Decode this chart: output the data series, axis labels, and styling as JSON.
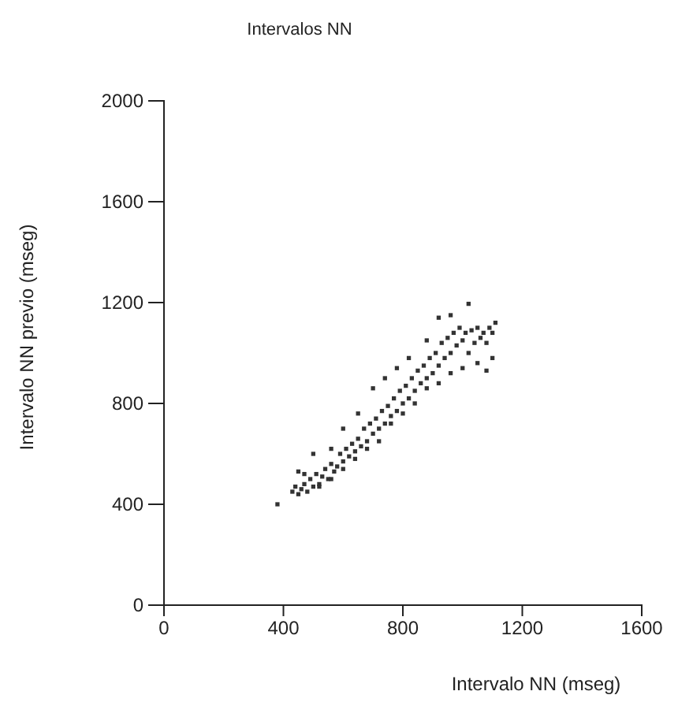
{
  "chart_data": {
    "type": "scatter",
    "title": "Intervalos NN",
    "xlabel": "Intervalo NN (mseg)",
    "ylabel": "Intervalo NN previo (mseg)",
    "xlim": [
      0,
      1600
    ],
    "ylim": [
      0,
      2000
    ],
    "xticks": [
      0,
      400,
      800,
      1200,
      1600
    ],
    "yticks": [
      0,
      400,
      800,
      1200,
      1600,
      2000
    ],
    "grid": false,
    "marker": "square",
    "series": [
      {
        "color": "#333333",
        "x": [
          380,
          430,
          440,
          450,
          460,
          470,
          480,
          490,
          500,
          470,
          450,
          510,
          520,
          530,
          540,
          550,
          560,
          570,
          580,
          590,
          600,
          610,
          620,
          630,
          640,
          650,
          660,
          670,
          680,
          690,
          700,
          710,
          720,
          730,
          740,
          750,
          760,
          770,
          780,
          790,
          800,
          810,
          820,
          830,
          840,
          850,
          860,
          870,
          880,
          890,
          900,
          910,
          920,
          930,
          940,
          950,
          960,
          970,
          980,
          990,
          1000,
          1010,
          1020,
          1030,
          1040,
          1050,
          1060,
          1070,
          1080,
          1090,
          1100,
          1110,
          1100,
          1080,
          1050,
          1000,
          960,
          920,
          880,
          840,
          800,
          760,
          720,
          680,
          640,
          600,
          560,
          520,
          500,
          560,
          600,
          650,
          700,
          740,
          780,
          820,
          880,
          920,
          960,
          1020
        ],
        "values": [
          400,
          450,
          470,
          440,
          460,
          480,
          450,
          500,
          470,
          520,
          530,
          520,
          480,
          510,
          540,
          500,
          560,
          530,
          550,
          600,
          570,
          620,
          590,
          640,
          610,
          660,
          630,
          700,
          650,
          720,
          680,
          740,
          700,
          770,
          720,
          790,
          750,
          820,
          770,
          850,
          800,
          870,
          820,
          900,
          850,
          930,
          880,
          950,
          900,
          980,
          920,
          1000,
          950,
          1040,
          980,
          1060,
          1000,
          1080,
          1030,
          1100,
          1050,
          1080,
          1000,
          1090,
          1040,
          1100,
          1060,
          1080,
          1040,
          1100,
          1080,
          1120,
          980,
          930,
          960,
          940,
          920,
          880,
          860,
          800,
          760,
          720,
          650,
          620,
          580,
          540,
          500,
          470,
          600,
          620,
          700,
          760,
          860,
          900,
          940,
          980,
          1050,
          1140,
          1150,
          1195
        ]
      }
    ]
  }
}
